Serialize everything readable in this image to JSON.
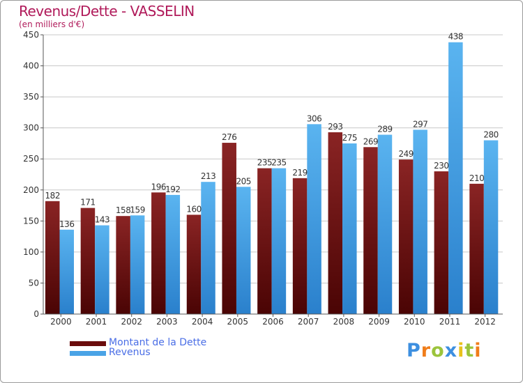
{
  "header": {
    "title": "Revenus/Dette - VASSELIN",
    "subtitle": "(en milliers d'€)"
  },
  "chart_data": {
    "type": "bar",
    "categories": [
      "2000",
      "2001",
      "2002",
      "2003",
      "2004",
      "2005",
      "2006",
      "2007",
      "2008",
      "2009",
      "2010",
      "2011",
      "2012"
    ],
    "series": [
      {
        "name": "Montant de la Dette",
        "values": [
          182,
          171,
          158,
          196,
          160,
          276,
          235,
          219,
          293,
          269,
          249,
          230,
          210
        ],
        "color": "#7a1414"
      },
      {
        "name": "Revenus",
        "values": [
          136,
          143,
          159,
          192,
          213,
          205,
          235,
          306,
          275,
          289,
          297,
          438,
          280
        ],
        "color": "#4aa3e6"
      }
    ],
    "ylim": [
      0,
      450
    ],
    "yticks": [
      0,
      50,
      100,
      150,
      200,
      250,
      300,
      350,
      400,
      450
    ],
    "grid": true,
    "legend_position": "bottom-left"
  },
  "legend": {
    "items": [
      {
        "label": "Montant de la Dette",
        "color": "#6a0c0c"
      },
      {
        "label": "Revenus",
        "color": "#4aa3e6"
      }
    ]
  },
  "brand": {
    "letters": [
      {
        "char": "P",
        "color": "#3d8fe0"
      },
      {
        "char": "r",
        "color": "#f07d1a"
      },
      {
        "char": "o",
        "color": "#9bc43c"
      },
      {
        "char": "x",
        "color": "#3d8fe0"
      },
      {
        "char": "i",
        "color": "#e8c21c"
      },
      {
        "char": "t",
        "color": "#9bc43c"
      },
      {
        "char": "i",
        "color": "#f07d1a"
      }
    ]
  }
}
